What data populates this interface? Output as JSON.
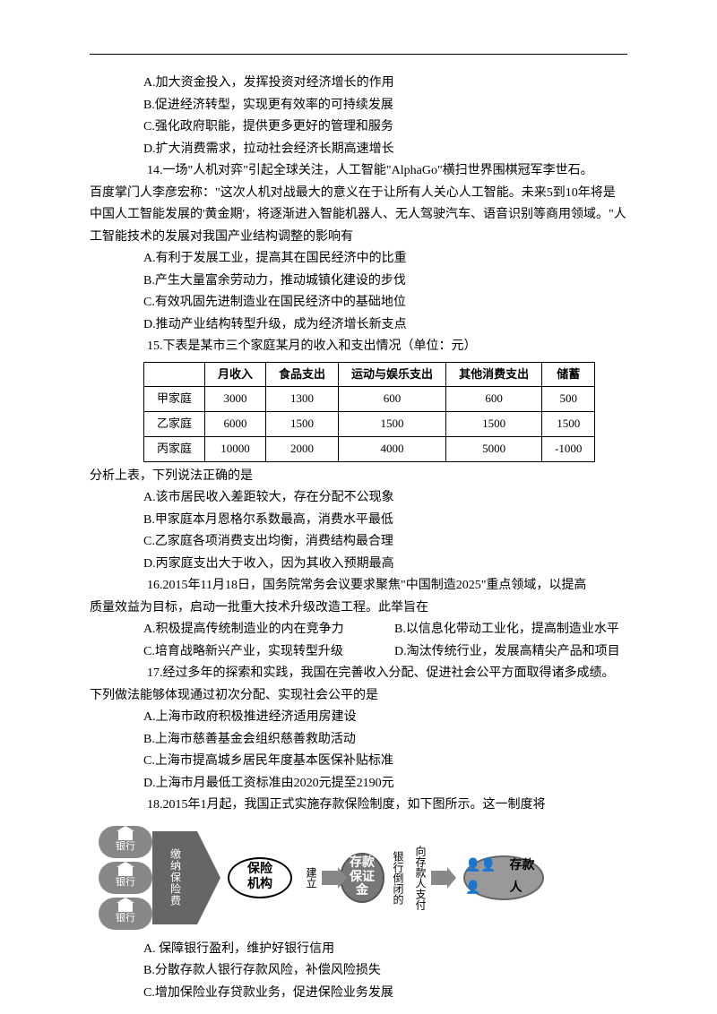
{
  "q13": {
    "optA": "A.加大资金投入，发挥投资对经济增长的作用",
    "optB": "B.促进经济转型，实现更有效率的可持续发展",
    "optC": "C.强化政府职能，提供更多更好的管理和服务",
    "optD": "D.扩大消费需求，拉动社会经济长期高速增长"
  },
  "q14": {
    "stem1": "14.一场\"人机对弈\"引起全球关注，人工智能\"AlphaGo\"横扫世界围棋冠军李世石。",
    "stem2": "百度掌门人李彦宏称：\"这次人机对战最大的意义在于让所有人关心人工智能。未来5到10年将是中国人工智能发展的'黄金期'，将逐渐进入智能机器人、无人驾驶汽车、语音识别等商用领域。\"人工智能技术的发展对我国产业结构调整的影响有",
    "optA": "A.有利于发展工业，提高其在国民经济中的比重",
    "optB": "B.产生大量富余劳动力，推动城镇化建设的步伐",
    "optC": "C.有效巩固先进制造业在国民经济中的基础地位",
    "optD": "D.推动产业结构转型升级，成为经济增长新支点"
  },
  "q15": {
    "stem": "15.下表是某市三个家庭某月的收入和支出情况（单位：元）",
    "table": {
      "columns": [
        "",
        "月收入",
        "食品支出",
        "运动与娱乐支出",
        "其他消费支出",
        "储蓄"
      ],
      "rows": [
        [
          "甲家庭",
          "3000",
          "1300",
          "600",
          "600",
          "500"
        ],
        [
          "乙家庭",
          "6000",
          "1500",
          "1500",
          "1500",
          "1500"
        ],
        [
          "丙家庭",
          "10000",
          "2000",
          "4000",
          "5000",
          "-1000"
        ]
      ]
    },
    "analysis": "分析上表，下列说法正确的是",
    "optA": "A.该市居民收入差距较大，存在分配不公现象",
    "optB": "B.甲家庭本月恩格尔系数最高，消费水平最低",
    "optC": "C.乙家庭各项消费支出均衡，消费结构最合理",
    "optD": "D.丙家庭支出大于收入，因为其收入预期最高"
  },
  "q16": {
    "stem1": "16.2015年11月18日，国务院常务会议要求聚焦\"中国制造2025\"重点领域，以提高",
    "stem2": "质量效益为目标，启动一批重大技术升级改造工程。此举旨在",
    "optA": "A.积极提高传统制造业的内在竞争力",
    "optB": "B.以信息化带动工业化，提高制造业水平",
    "optC": "C.培育战略新兴产业，实现转型升级",
    "optD": "D.淘汰传统行业，发展高精尖产品和项目"
  },
  "q17": {
    "stem1": "17.经过多年的探索和实践，我国在完善收入分配、促进社会公平方面取得诸多成绩。",
    "stem2": "下列做法能够体现通过初次分配、实现社会公平的是",
    "optA": "A.上海市政府积极推进经济适用房建设",
    "optB": "B.上海市慈善基金会组织慈善救助活动",
    "optC": "C.上海市提高城乡居民年度基本医保补贴标准",
    "optD": "D.上海市月最低工资标准由2020元提至2190元"
  },
  "q18": {
    "stem": "18.2015年1月起，我国正式实施存款保险制度，如下图所示。这一制度将",
    "diagram": {
      "bank_label": "银行",
      "arrow1_label": "缴纳保险费",
      "node_insurer": "保险机构",
      "label_establish": "建立",
      "node_fund": "存款保证金",
      "label_bank_fail": "银行倒闭的",
      "label_pay": "向存款人支付",
      "node_depositor": "存款人"
    },
    "optA": "A. 保障银行盈利，维护好银行信用",
    "optB": "B.分散存款人银行存款风险，补偿风险损失",
    "optC": "C.增加保险业存贷款业务，促进保险业务发展"
  }
}
